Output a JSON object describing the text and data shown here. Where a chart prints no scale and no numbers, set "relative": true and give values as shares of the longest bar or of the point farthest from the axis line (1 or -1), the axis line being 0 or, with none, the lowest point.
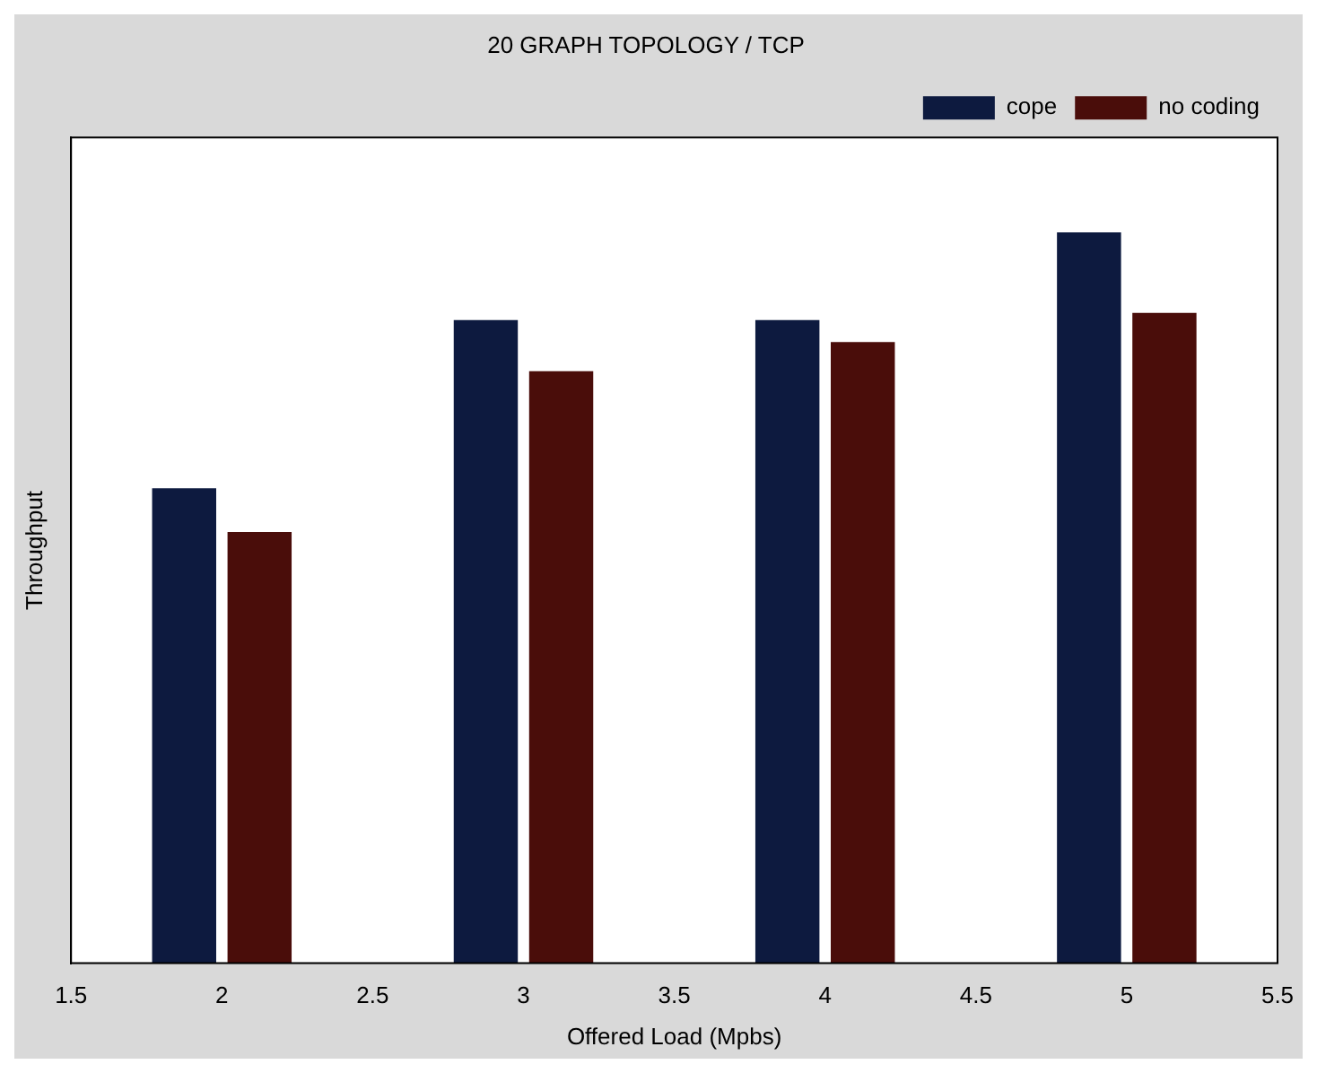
{
  "chart_data": {
    "type": "bar",
    "title": "20 GRAPH TOPOLOGY / TCP",
    "xlabel": "Offered Load (Mpbs)",
    "ylabel": "Throughput",
    "categories": [
      "1.5",
      "2",
      "2.5",
      "3",
      "3.5",
      "4",
      "4.5",
      "5",
      "5.5"
    ],
    "relative": true,
    "legend": "top right",
    "grid": false,
    "series": [
      {
        "name": "cope",
        "color": "#0d1a3f",
        "values": [
          null,
          0.65,
          null,
          0.88,
          null,
          0.88,
          null,
          1,
          null
        ]
      },
      {
        "name": "no coding",
        "color": "#4a0d0a",
        "values": [
          null,
          0.59,
          null,
          0.81,
          null,
          0.85,
          null,
          0.89,
          null
        ]
      }
    ]
  }
}
